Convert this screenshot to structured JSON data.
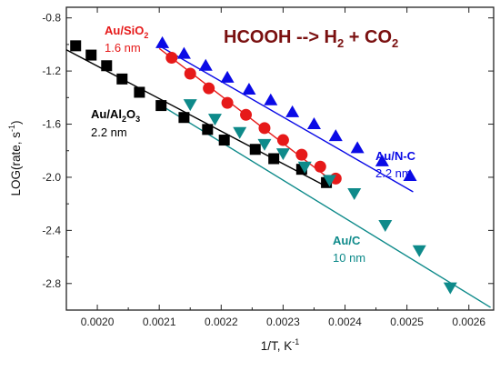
{
  "chart_data": {
    "type": "scatter",
    "title_parts": {
      "main": "HCOOH --> H",
      "sub1": "2",
      "mid": " + CO",
      "sub2": "2"
    },
    "xlabel": "1/T, K",
    "xlabel_sup": "-1",
    "ylabel": "LOG(rate, s",
    "ylabel_sup": "-1",
    "ylabel_end": ")",
    "xlim": [
      0.00195,
      0.00264
    ],
    "ylim": [
      -3.0,
      -0.72
    ],
    "xticks": [
      0.002,
      0.0021,
      0.0022,
      0.0023,
      0.0024,
      0.0025,
      0.0026
    ],
    "xtick_labels": [
      "0.0020",
      "0.0021",
      "0.0022",
      "0.0023",
      "0.0024",
      "0.0025",
      "0.0026"
    ],
    "yticks": [
      -0.8,
      -1.2,
      -1.6,
      -2.0,
      -2.4,
      -2.8
    ],
    "ytick_labels": [
      "-0.8",
      "-1.2",
      "-1.6",
      "-2.0",
      "-2.4",
      "-2.8"
    ],
    "grid": false,
    "title_color": "#7a1010",
    "series": [
      {
        "name": "Au/Al2O3",
        "size": "2.2 nm",
        "marker": "square",
        "color": "#000000",
        "x": [
          0.001965,
          0.00199,
          0.002015,
          0.00204,
          0.002068,
          0.002103,
          0.00214,
          0.002178,
          0.002205,
          0.002255,
          0.002285,
          0.00233,
          0.00237
        ],
        "y": [
          -1.01,
          -1.08,
          -1.16,
          -1.26,
          -1.36,
          -1.46,
          -1.55,
          -1.64,
          -1.72,
          -1.79,
          -1.86,
          -1.94,
          -2.04
        ],
        "fit": [
          [
            0.00195,
            -1.04
          ],
          [
            0.00237,
            -2.07
          ]
        ]
      },
      {
        "name": "Au/SiO2",
        "size": "1.6 nm",
        "marker": "circle",
        "color": "#e61919",
        "x": [
          0.00212,
          0.00215,
          0.00218,
          0.00221,
          0.00224,
          0.00227,
          0.0023,
          0.00233,
          0.00236,
          0.002385
        ],
        "y": [
          -1.1,
          -1.22,
          -1.33,
          -1.44,
          -1.53,
          -1.63,
          -1.72,
          -1.83,
          -1.92,
          -2.01
        ],
        "fit": [
          [
            0.0021,
            -1.03
          ],
          [
            0.00238,
            -2.03
          ]
        ]
      },
      {
        "name": "Au/N-C",
        "size": "2.2 nm",
        "marker": "triangle-up",
        "color": "#0a0ae6",
        "x": [
          0.002105,
          0.00214,
          0.002175,
          0.00221,
          0.002245,
          0.00228,
          0.002315,
          0.00235,
          0.002385,
          0.00242,
          0.00246,
          0.002505
        ],
        "y": [
          -0.99,
          -1.07,
          -1.16,
          -1.25,
          -1.34,
          -1.42,
          -1.51,
          -1.6,
          -1.69,
          -1.78,
          -1.88,
          -1.99
        ],
        "fit": [
          [
            0.0021,
            -1.01
          ],
          [
            0.00251,
            -2.11
          ]
        ]
      },
      {
        "name": "Au/C",
        "size": "10 nm",
        "marker": "triangle-down",
        "color": "#0e8a8a",
        "x": [
          0.00215,
          0.00219,
          0.00223,
          0.00227,
          0.0023,
          0.002335,
          0.002375,
          0.002415,
          0.002465,
          0.00252,
          0.00257
        ],
        "y": [
          -1.45,
          -1.56,
          -1.66,
          -1.75,
          -1.82,
          -1.92,
          -2.02,
          -2.12,
          -2.36,
          -2.55,
          -2.83
        ],
        "fit": [
          [
            0.0021,
            -1.45
          ],
          [
            0.002635,
            -2.98
          ]
        ]
      }
    ]
  }
}
